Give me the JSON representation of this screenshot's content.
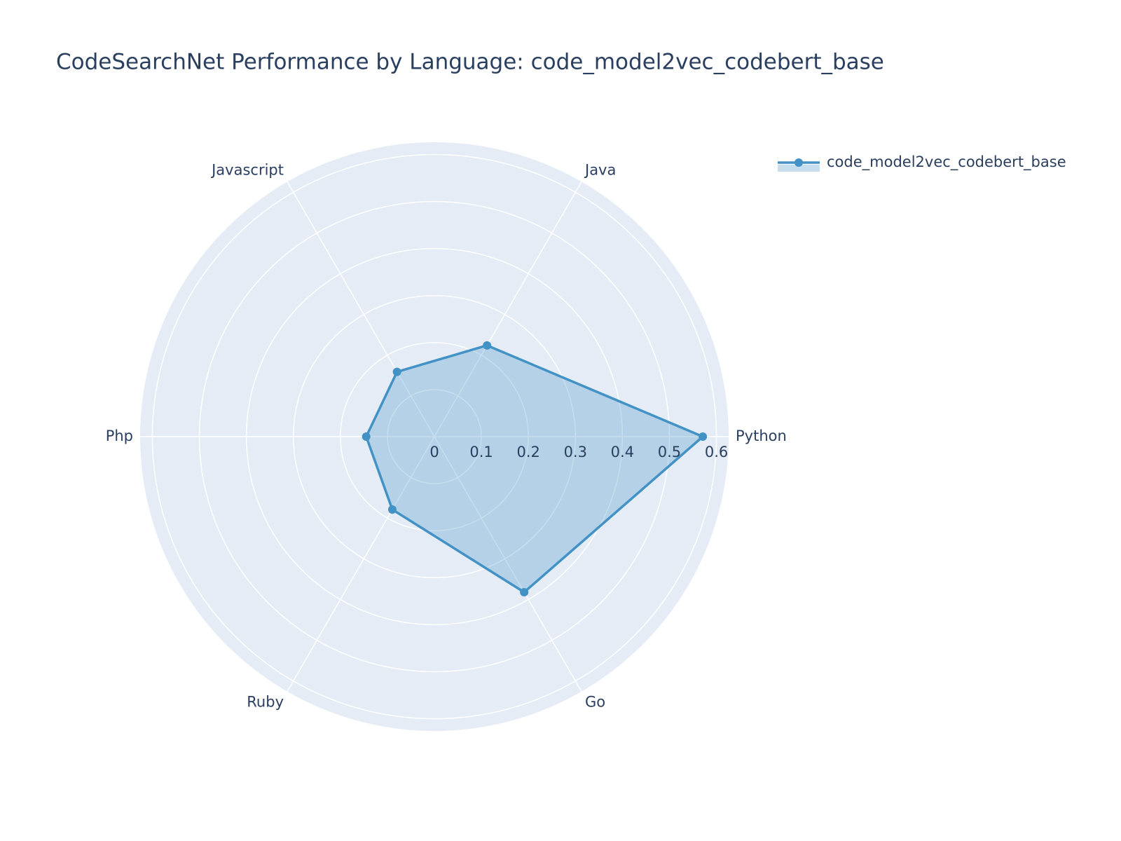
{
  "chart_data": {
    "type": "radar",
    "title": "CodeSearchNet Performance by Language: code_model2vec_codebert_base",
    "categories": [
      "Python",
      "Java",
      "Javascript",
      "Php",
      "Ruby",
      "Go"
    ],
    "series": [
      {
        "name": "code_model2vec_codebert_base",
        "color": "#4292c6",
        "values": [
          0.571,
          0.224,
          0.159,
          0.145,
          0.179,
          0.382
        ]
      }
    ],
    "rlim": [
      0,
      0.626
    ],
    "rticks": [
      0,
      0.1,
      0.2,
      0.3,
      0.4,
      0.5,
      0.6
    ],
    "grid": true,
    "legend": "top-right"
  }
}
